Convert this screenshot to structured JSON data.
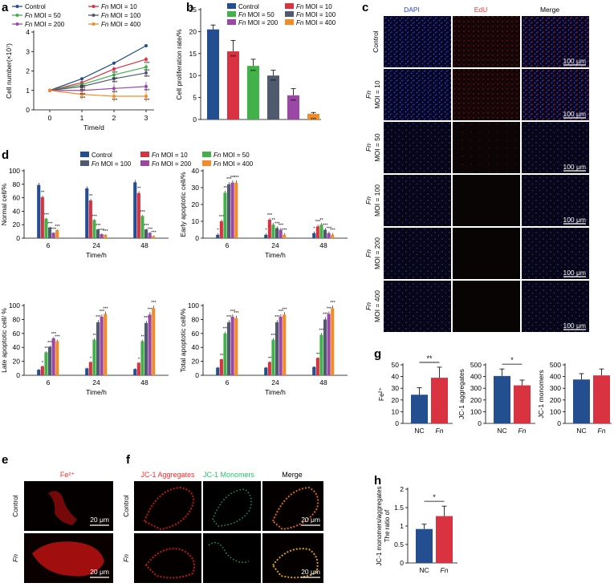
{
  "colors": {
    "control": "#234e8f",
    "moi10": "#d93240",
    "moi50": "#43b149",
    "moi100": "#4f5a6e",
    "moi200": "#9a47a6",
    "moi400": "#f28c28",
    "blue": "#2340ff",
    "red": "#ff2b2b",
    "green": "#23c66b",
    "axis": "#000000"
  },
  "panel_letters": {
    "a": "a",
    "b": "b",
    "c": "c",
    "d": "d",
    "e": "e",
    "f": "f",
    "g": "g",
    "h": "h"
  },
  "legend": {
    "control": "Control",
    "fn": "Fn",
    "moi10": " MOI = 10",
    "moi50": " MOI = 50",
    "moi100": " MOI = 100",
    "moi200": " MOI = 200",
    "moi400": " MOI = 400"
  },
  "panel_c": {
    "columns": [
      "DAPI",
      "EdU",
      "Merge"
    ],
    "rows": [
      {
        "fn": "",
        "moi": "Control"
      },
      {
        "fn": "Fn",
        "moi": "MOI = 10"
      },
      {
        "fn": "Fn",
        "moi": "MOI = 50"
      },
      {
        "fn": "Fn",
        "moi": "MOI = 100"
      },
      {
        "fn": "Fn",
        "moi": "MOI = 200"
      },
      {
        "fn": "Fn",
        "moi": "MOI = 400"
      }
    ],
    "scale": "100 μm"
  },
  "panel_e": {
    "title": "Fe²⁺",
    "rows": [
      "Control",
      "Fn"
    ],
    "scale": "20 μm"
  },
  "panel_f": {
    "columns": [
      "JC-1 Aggregates",
      "JC-1 Monomers",
      "Merge"
    ],
    "rows": [
      "Control",
      "Fn"
    ],
    "scale": "20 μm"
  },
  "chart_data": [
    {
      "id": "a",
      "type": "line",
      "xlabel": "Time/d",
      "ylabel": "Cell number(×10⁷)",
      "x": [
        0,
        1,
        2,
        3
      ],
      "xlim": [
        0,
        3
      ],
      "ylim": [
        0,
        4
      ],
      "yticks": [
        0,
        1,
        2,
        3,
        4
      ],
      "series": [
        {
          "name": "Control",
          "values": [
            1,
            1.6,
            2.4,
            3.3
          ]
        },
        {
          "name": "Fn MOI = 10",
          "values": [
            1,
            1.4,
            2.1,
            2.6
          ]
        },
        {
          "name": "Fn MOI = 50",
          "values": [
            1,
            1.3,
            1.8,
            2.2
          ]
        },
        {
          "name": "Fn MOI = 100",
          "values": [
            1,
            1.2,
            1.6,
            1.9
          ]
        },
        {
          "name": "Fn MOI = 200",
          "values": [
            1,
            1.0,
            1.1,
            1.2
          ]
        },
        {
          "name": "Fn MOI = 400",
          "values": [
            1,
            0.8,
            0.7,
            0.7
          ]
        }
      ],
      "annotations": [
        "***",
        "***",
        "***",
        "***",
        "***",
        "***",
        "***",
        "***",
        "***",
        "***",
        "***",
        "***",
        "***",
        "***",
        "***"
      ]
    },
    {
      "id": "b",
      "type": "bar",
      "ylabel": "Cell proliferation rate/%",
      "ylim": [
        0,
        25
      ],
      "yticks": [
        0,
        5,
        10,
        15,
        20,
        25
      ],
      "categories": [
        "Control",
        "Fn MOI = 10",
        "Fn MOI = 50",
        "Fn MOI = 100",
        "Fn MOI = 200",
        "Fn MOI = 400"
      ],
      "values": [
        20.5,
        15.5,
        12.2,
        10.0,
        5.5,
        1.3
      ],
      "errors": [
        1.0,
        2.5,
        1.5,
        1.2,
        1.5,
        0.3
      ],
      "annotations": [
        "",
        "***",
        "***",
        "***",
        "***",
        "***"
      ]
    },
    {
      "id": "d1",
      "type": "bar",
      "ylabel": "Normal cell/%",
      "xlabel": "Time/h",
      "ylim": [
        0,
        100
      ],
      "yticks": [
        0,
        20,
        40,
        60,
        80,
        100
      ],
      "categories": [
        "6",
        "24",
        "48"
      ],
      "series": [
        {
          "name": "Control",
          "values": [
            79,
            74,
            83
          ]
        },
        {
          "name": "Fn MOI = 10",
          "values": [
            61,
            56,
            67
          ]
        },
        {
          "name": "Fn MOI = 50",
          "values": [
            29,
            27,
            33
          ]
        },
        {
          "name": "Fn MOI = 100",
          "values": [
            16,
            13,
            13
          ]
        },
        {
          "name": "Fn MOI = 200",
          "values": [
            8,
            6,
            8
          ]
        },
        {
          "name": "Fn MOI = 400",
          "values": [
            12,
            5,
            3
          ]
        }
      ],
      "annotations": [
        "",
        "**",
        "***",
        "***",
        "***",
        "***"
      ]
    },
    {
      "id": "d2",
      "type": "bar",
      "ylabel": "Early apoptotic cell/%",
      "xlabel": "Time/h",
      "ylim": [
        0,
        40
      ],
      "yticks": [
        0,
        10,
        20,
        30,
        40
      ],
      "categories": [
        "6",
        "24",
        "48"
      ],
      "series": [
        {
          "name": "Control",
          "values": [
            2,
            2,
            3
          ]
        },
        {
          "name": "Fn MOI = 10",
          "values": [
            10,
            11,
            7
          ]
        },
        {
          "name": "Fn MOI = 50",
          "values": [
            27,
            8,
            8
          ]
        },
        {
          "name": "Fn MOI = 100",
          "values": [
            32,
            6,
            5
          ]
        },
        {
          "name": "Fn MOI = 200",
          "values": [
            33,
            5,
            3
          ]
        },
        {
          "name": "Fn MOI = 400",
          "values": [
            33,
            2,
            2
          ]
        }
      ],
      "annotations": [
        "*",
        "***",
        "**",
        "***",
        "***",
        "***"
      ]
    },
    {
      "id": "d3",
      "type": "bar",
      "ylabel": "Late apoptotic cell/ %",
      "xlabel": "Time/h",
      "ylim": [
        0,
        100
      ],
      "yticks": [
        0,
        20,
        40,
        60,
        80,
        100
      ],
      "categories": [
        "6",
        "24",
        "48"
      ],
      "series": [
        {
          "name": "Control",
          "values": [
            8,
            10,
            9
          ]
        },
        {
          "name": "Fn MOI = 10",
          "values": [
            13,
            19,
            18
          ]
        },
        {
          "name": "Fn MOI = 50",
          "values": [
            33,
            51,
            49
          ]
        },
        {
          "name": "Fn MOI = 100",
          "values": [
            41,
            76,
            75
          ]
        },
        {
          "name": "Fn MOI = 200",
          "values": [
            53,
            84,
            87
          ]
        },
        {
          "name": "Fn MOI = 400",
          "values": [
            49,
            88,
            96
          ]
        }
      ],
      "annotations": [
        "",
        "*",
        "**",
        "***",
        "***",
        "***"
      ]
    },
    {
      "id": "d4",
      "type": "bar",
      "ylabel": "Total apoptotic cell/%",
      "xlabel": "Time/h",
      "ylim": [
        0,
        100
      ],
      "yticks": [
        0,
        20,
        40,
        60,
        80,
        100
      ],
      "categories": [
        "6",
        "24",
        "48"
      ],
      "series": [
        {
          "name": "Control",
          "values": [
            11,
            11,
            12
          ]
        },
        {
          "name": "Fn MOI = 10",
          "values": [
            23,
            19,
            25
          ]
        },
        {
          "name": "Fn MOI = 50",
          "values": [
            60,
            51,
            58
          ]
        },
        {
          "name": "Fn MOI = 100",
          "values": [
            76,
            76,
            80
          ]
        },
        {
          "name": "Fn MOI = 200",
          "values": [
            84,
            84,
            88
          ]
        },
        {
          "name": "Fn MOI = 400",
          "values": [
            82,
            87,
            96
          ]
        }
      ],
      "annotations": [
        "",
        "**",
        "***",
        "***",
        "***",
        "***"
      ]
    },
    {
      "id": "g1",
      "type": "bar",
      "ylabel": "Fe²⁺",
      "ylim": [
        0,
        50
      ],
      "yticks": [
        0,
        10,
        20,
        30,
        40,
        50
      ],
      "categories": [
        "NC",
        "Fn"
      ],
      "values": [
        24.5,
        39
      ],
      "errors": [
        6,
        9
      ],
      "significance": "**"
    },
    {
      "id": "g2",
      "type": "bar",
      "ylabel": "JC-1 aggregates",
      "ylim": [
        0,
        500
      ],
      "yticks": [
        0,
        100,
        200,
        300,
        400,
        500
      ],
      "categories": [
        "NC",
        "Fn"
      ],
      "values": [
        405,
        325
      ],
      "errors": [
        60,
        45
      ],
      "significance": "*"
    },
    {
      "id": "g3",
      "type": "bar",
      "ylabel": "JC-1 monomers",
      "ylim": [
        0,
        500
      ],
      "yticks": [
        0,
        100,
        200,
        300,
        400,
        500
      ],
      "categories": [
        "NC",
        "Fn"
      ],
      "values": [
        375,
        410
      ],
      "errors": [
        50,
        55
      ],
      "significance": ""
    },
    {
      "id": "h",
      "type": "bar",
      "ylabel": "The ratio of JC-1 monomers/aggregates",
      "ylim": [
        0,
        2.0
      ],
      "yticks": [
        0.0,
        0.5,
        1.0,
        1.5,
        2.0
      ],
      "categories": [
        "NC",
        "Fn"
      ],
      "values": [
        0.92,
        1.27
      ],
      "errors": [
        0.13,
        0.27
      ],
      "significance": "*"
    }
  ]
}
